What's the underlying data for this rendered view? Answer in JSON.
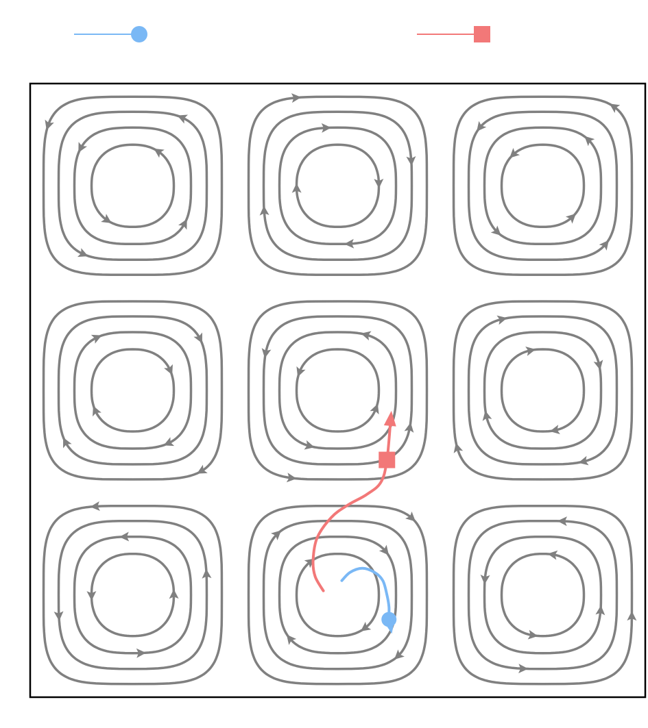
{
  "colors": {
    "streamline": "#808080",
    "traj1": "#7ab8f5",
    "traj2": "#f27878",
    "frame": "#000000",
    "background": "#ffffff"
  },
  "chart_data": {
    "type": "streamplot",
    "title": "",
    "xlabel": "",
    "ylabel": "",
    "xlim": [
      0,
      3
    ],
    "ylim": [
      0,
      3
    ],
    "grid": false,
    "axes_ticks": false,
    "legend": {
      "placement": "top",
      "entries": [
        {
          "series": 0,
          "marker": "circle",
          "label": ""
        },
        {
          "series": 1,
          "marker": "square",
          "label": ""
        }
      ]
    },
    "field": {
      "kind": "cellular-vortex",
      "cells": [
        3,
        3
      ],
      "cell_centers": [
        [
          0.5,
          0.5
        ],
        [
          1.5,
          0.5
        ],
        [
          2.5,
          0.5
        ],
        [
          0.5,
          1.5
        ],
        [
          1.5,
          1.5
        ],
        [
          2.5,
          1.5
        ],
        [
          0.5,
          2.5
        ],
        [
          1.5,
          2.5
        ],
        [
          2.5,
          2.5
        ]
      ],
      "loops_per_cell": 4
    },
    "series": [
      {
        "color": "traj1",
        "marker": "circle",
        "end_arrow": true,
        "points": [
          [
            1.52,
            0.57
          ],
          [
            1.56,
            0.61
          ],
          [
            1.62,
            0.63
          ],
          [
            1.68,
            0.61
          ],
          [
            1.72,
            0.57
          ],
          [
            1.74,
            0.5
          ],
          [
            1.75,
            0.44
          ],
          [
            1.75,
            0.38
          ],
          [
            1.76,
            0.33
          ]
        ]
      },
      {
        "color": "traj2",
        "marker": "square",
        "end_arrow": true,
        "points": [
          [
            1.43,
            0.52
          ],
          [
            1.39,
            0.59
          ],
          [
            1.38,
            0.67
          ],
          [
            1.4,
            0.78
          ],
          [
            1.47,
            0.88
          ],
          [
            1.55,
            0.94
          ],
          [
            1.64,
            0.99
          ],
          [
            1.71,
            1.05
          ],
          [
            1.74,
            1.16
          ],
          [
            1.76,
            1.38
          ]
        ]
      }
    ]
  }
}
